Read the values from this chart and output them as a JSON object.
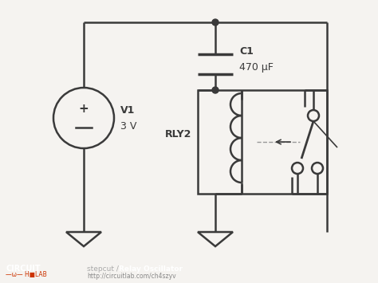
{
  "bg_color": "#f5f3f0",
  "line_color": "#3a3a3a",
  "line_width": 1.8,
  "footer_bg": "#1c1c1c",
  "footer_text_color": "#ffffff",
  "footer_logo_color": "#cc3300",
  "C1_label": "C1",
  "C1_value": "470 μF",
  "V1_label": "V1",
  "V1_value": "3 V",
  "RLY2_label": "RLY2",
  "title_normal": "stepcut / ",
  "title_bold": "Relay Oscillator",
  "url_text": "http://circuitlab.com/ch4szyv"
}
